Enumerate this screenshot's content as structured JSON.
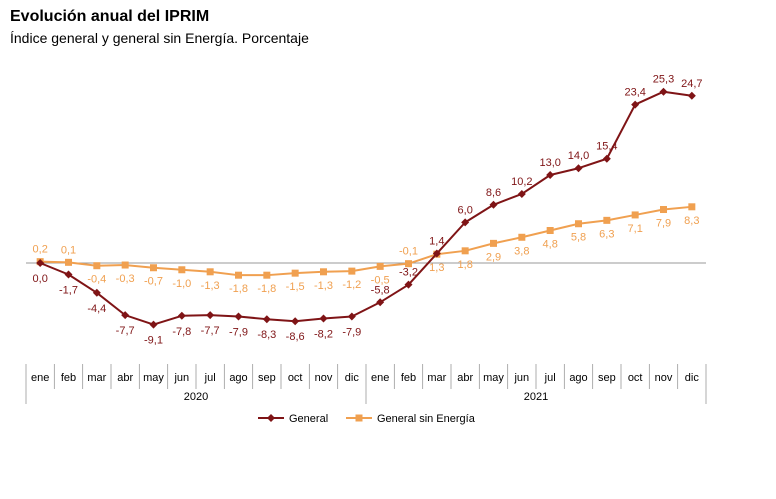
{
  "chart_data": {
    "type": "line",
    "title": "Evolución anual del IPRIM",
    "subtitle": "Índice general y general sin Energía. Porcentaje",
    "categories": [
      "ene",
      "feb",
      "mar",
      "abr",
      "may",
      "jun",
      "jul",
      "ago",
      "sep",
      "oct",
      "nov",
      "dic",
      "ene",
      "feb",
      "mar",
      "abr",
      "may",
      "jun",
      "jul",
      "ago",
      "sep",
      "oct",
      "nov",
      "dic"
    ],
    "years": [
      {
        "label": "2020",
        "from": 0,
        "to": 11
      },
      {
        "label": "2021",
        "from": 12,
        "to": 23
      }
    ],
    "ylim": [
      -12,
      28
    ],
    "grid": false,
    "legend_position": "bottom",
    "series": [
      {
        "name": "General",
        "color": "#7f1416",
        "marker": "diamond",
        "values": [
          0.0,
          -1.7,
          -4.4,
          -7.7,
          -9.1,
          -7.8,
          -7.7,
          -7.9,
          -8.3,
          -8.6,
          -8.2,
          -7.9,
          -5.8,
          -3.2,
          1.4,
          6.0,
          8.6,
          10.2,
          13.0,
          14.0,
          15.4,
          23.4,
          25.3,
          24.7
        ],
        "labels": [
          "0,0",
          "-1,7",
          "-4,4",
          "-7,7",
          "-9,1",
          "-7,8",
          "-7,7",
          "-7,9",
          "-8,3",
          "-8,6",
          "-8,2",
          "-7,9",
          "-5,8",
          "-3,2",
          "1,4",
          "6,0",
          "8,6",
          "10,2",
          "13,0",
          "14,0",
          "15,4",
          "23,4",
          "25,3",
          "24,7"
        ]
      },
      {
        "name": "General sin Energía",
        "color": "#f0a050",
        "marker": "square",
        "values": [
          0.2,
          0.1,
          -0.4,
          -0.3,
          -0.7,
          -1.0,
          -1.3,
          -1.8,
          -1.8,
          -1.5,
          -1.3,
          -1.2,
          -0.5,
          -0.1,
          1.3,
          1.8,
          2.9,
          3.8,
          4.8,
          5.8,
          6.3,
          7.1,
          7.9,
          8.3
        ],
        "labels": [
          "0,2",
          "0,1",
          "-0,4",
          "-0,3",
          "-0,7",
          "-1,0",
          "-1,3",
          "-1,8",
          "-1,8",
          "-1,5",
          "-1,3",
          "-1,2",
          "-0,5",
          "-0,1",
          "1,3",
          "1,8",
          "2,9",
          "3,8",
          "4,8",
          "5,8",
          "6,3",
          "7,1",
          "7,9",
          "8,3"
        ]
      }
    ]
  }
}
